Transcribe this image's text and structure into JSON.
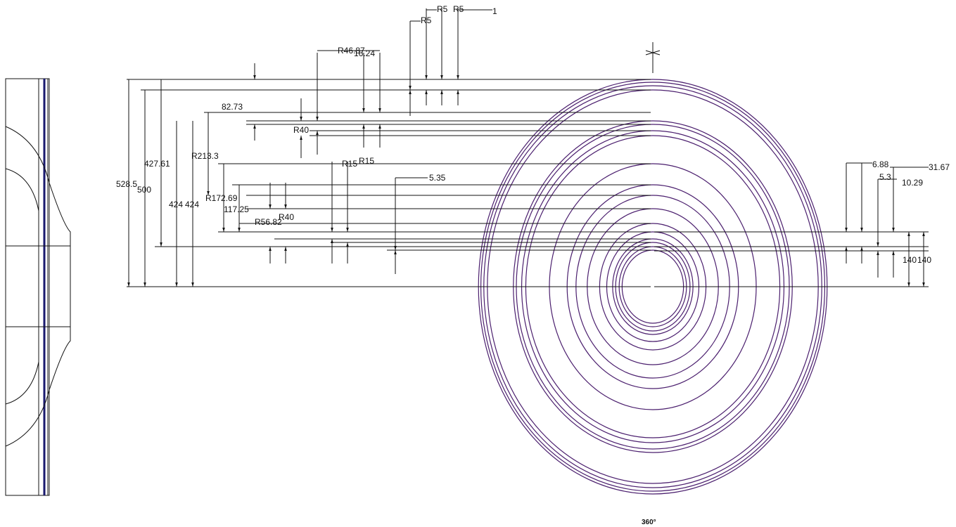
{
  "labels": [
    "R5",
    "R5",
    "R5",
    "1",
    "R46.87",
    "16.24",
    "82.73",
    "R40",
    "427.61",
    "R213.3",
    "528.5",
    "500",
    "424",
    "424",
    "R15",
    "R15",
    "5.35",
    "R172.69",
    "117.25",
    "R56.82",
    "R40",
    "6.88",
    "31.67",
    "5.3",
    "10.29",
    "140",
    "140"
  ],
  "footer": "360°"
}
